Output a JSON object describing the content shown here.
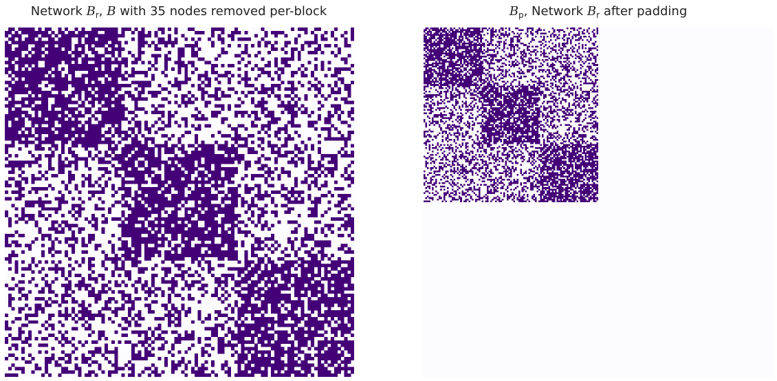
{
  "colors": {
    "edge": "#440077",
    "empty": "#fcfbfd",
    "padding": "#fcfbfd"
  },
  "chart_data": [
    {
      "type": "heatmap",
      "title": {
        "pre": "Network ",
        "sym1": "B",
        "sub1": "r",
        "mid": ", ",
        "sym2": "B",
        "post": " with 35 nodes removed per-block"
      },
      "n_nodes": 105,
      "blocks": [
        {
          "start": 0,
          "end": 35
        },
        {
          "start": 35,
          "end": 70
        },
        {
          "start": 70,
          "end": 105
        }
      ],
      "p_in": [
        0.72,
        0.7,
        0.72
      ],
      "p_out": 0.36,
      "values": "binary adjacency (1 = edge, 0 = none)",
      "grid": false,
      "axes": "hidden"
    },
    {
      "type": "heatmap",
      "title": {
        "sym1": "B",
        "sub1": "p",
        "mid": ", Network ",
        "sym2": "B",
        "sub2": "r",
        "post": " after padding"
      },
      "n_nodes": 210,
      "data_nodes": 105,
      "blocks": [
        {
          "start": 0,
          "end": 35
        },
        {
          "start": 35,
          "end": 70
        },
        {
          "start": 70,
          "end": 105
        }
      ],
      "p_in": [
        0.72,
        0.7,
        0.72
      ],
      "p_out": 0.36,
      "padding_value": 0,
      "grid": false,
      "axes": "hidden"
    }
  ]
}
